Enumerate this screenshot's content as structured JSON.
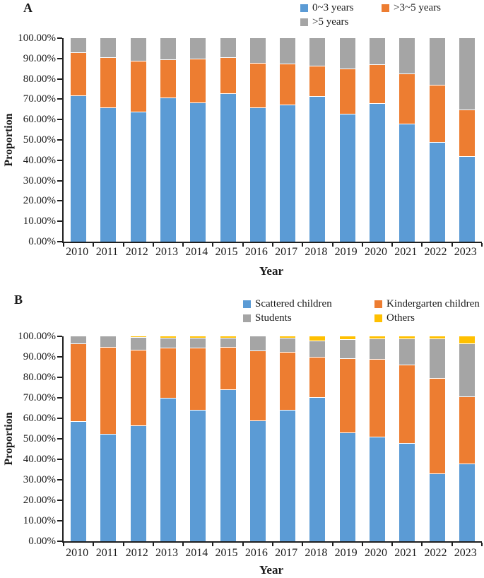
{
  "figure": {
    "panels": [
      {
        "label": "A"
      },
      {
        "label": "B"
      }
    ]
  },
  "chart_data": [
    {
      "type": "bar",
      "stacked": true,
      "panel": "A",
      "title": "",
      "xlabel": "Year",
      "ylabel": "Proportion",
      "ylim": [
        0,
        100
      ],
      "grid": false,
      "legend_position": "top-right-two-columns",
      "axis_color": "#1f1f1f",
      "ytick_labels": [
        "100.00%",
        "90.00%",
        "80.00%",
        "70.00%",
        "60.00%",
        "50.00%",
        "40.00%",
        "30.00%",
        "20.00%",
        "10.00%",
        "0.00%"
      ],
      "categories": [
        "2010",
        "2011",
        "2012",
        "2013",
        "2014",
        "2015",
        "2016",
        "2017",
        "2018",
        "2019",
        "2020",
        "2021",
        "2022",
        "2023"
      ],
      "series": [
        {
          "name": "0~3 years",
          "color": "#5B9BD5",
          "values": [
            72,
            66,
            64,
            71,
            68.5,
            73,
            66,
            67.5,
            71.5,
            63,
            68,
            58,
            49,
            42
          ]
        },
        {
          "name": ">3~5 years",
          "color": "#ED7D31",
          "values": [
            21,
            24.5,
            25,
            18.5,
            21.5,
            17.5,
            22,
            20,
            15,
            22,
            19,
            24.5,
            28,
            23
          ]
        },
        {
          "name": ">5 years",
          "color": "#A5A5A5",
          "values": [
            7,
            9.5,
            11,
            10.5,
            10,
            9.5,
            12,
            12.5,
            13.5,
            15,
            13,
            17.5,
            23,
            35
          ]
        }
      ]
    },
    {
      "type": "bar",
      "stacked": true,
      "panel": "B",
      "title": "",
      "xlabel": "Year",
      "ylabel": "Proportion",
      "ylim": [
        0,
        100
      ],
      "grid": false,
      "legend_position": "top-right-two-columns",
      "axis_color": "#1f1f1f",
      "ytick_labels": [
        "100.00%",
        "90.00%",
        "80.00%",
        "70.00%",
        "60.00%",
        "50.00%",
        "40.00%",
        "30.00%",
        "20.00%",
        "10.00%",
        "0.00%"
      ],
      "categories": [
        "2010",
        "2011",
        "2012",
        "2013",
        "2014",
        "2015",
        "2016",
        "2017",
        "2018",
        "2019",
        "2020",
        "2021",
        "2022",
        "2023"
      ],
      "series": [
        {
          "name": "Scattered children",
          "color": "#5B9BD5",
          "values": [
            58.5,
            52.5,
            56.5,
            70,
            64,
            74,
            59,
            64,
            70.5,
            53,
            51,
            48,
            33,
            38
          ]
        },
        {
          "name": "Kindergarten children",
          "color": "#ED7D31",
          "values": [
            38,
            42.5,
            37,
            24.5,
            30.5,
            21,
            34,
            28.5,
            19.5,
            36.3,
            38,
            38.3,
            46.5,
            32.7
          ]
        },
        {
          "name": "Students",
          "color": "#A5A5A5",
          "values": [
            3.5,
            5,
            6,
            4.8,
            4.8,
            4.4,
            7,
            6.9,
            8,
            9.2,
            10,
            12.7,
            19.5,
            25.9
          ]
        },
        {
          "name": "Others",
          "color": "#FFC000",
          "values": [
            0,
            0,
            0.5,
            0.7,
            0.7,
            0.6,
            0,
            0.6,
            2,
            1.5,
            1,
            1,
            1,
            3.4
          ]
        }
      ]
    }
  ]
}
